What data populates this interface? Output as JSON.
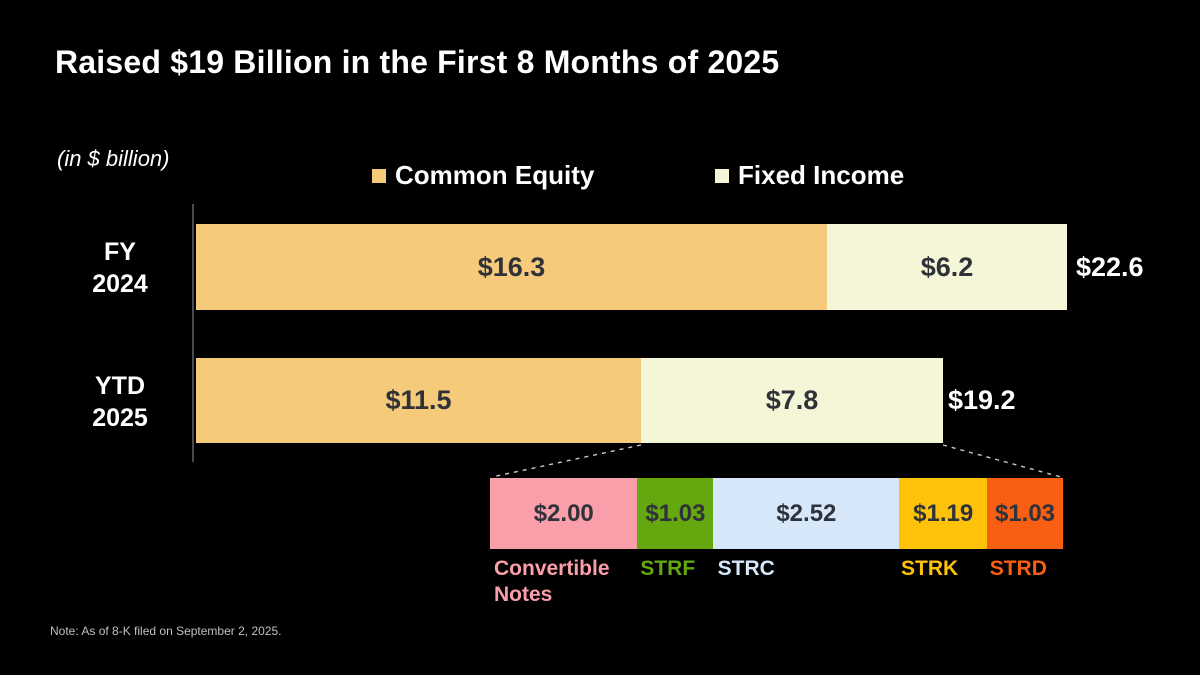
{
  "header": {
    "title": "Raised $19 Billion in the First 8 Months of 2025",
    "unit_label": "(in $ billion)"
  },
  "chart_data": {
    "type": "bar",
    "orientation": "horizontal",
    "unit": "$ billion",
    "title": "Raised $19 Billion in the First 8 Months of 2025",
    "categories": [
      "FY 2024",
      "YTD 2025"
    ],
    "category_lines": [
      [
        "FY",
        "2024"
      ],
      [
        "YTD",
        "2025"
      ]
    ],
    "legend_position": "top",
    "series": [
      {
        "name": "Common Equity",
        "color": "#F5CA7A",
        "values": [
          16.3,
          11.5
        ],
        "labels": [
          "$16.3",
          "$11.5"
        ]
      },
      {
        "name": "Fixed Income",
        "color": "#F5F5D8",
        "values": [
          6.2,
          7.8
        ],
        "labels": [
          "$6.2",
          "$7.8"
        ]
      }
    ],
    "totals": [
      "$22.6",
      "$19.2"
    ],
    "breakdown": {
      "of": "YTD 2025 Fixed Income",
      "segments": [
        {
          "label": "Convertible Notes",
          "value": 2.0,
          "display": "$2.00",
          "color": "#FA9EA9"
        },
        {
          "label": "STRF",
          "value": 1.03,
          "display": "$1.03",
          "color": "#64A70F"
        },
        {
          "label": "STRC",
          "value": 2.52,
          "display": "$2.52",
          "color": "#D6E7FA"
        },
        {
          "label": "STRK",
          "value": 1.19,
          "display": "$1.19",
          "color": "#FEC20A"
        },
        {
          "label": "STRD",
          "value": 1.03,
          "display": "$1.03",
          "color": "#F95F12"
        }
      ]
    }
  },
  "footnote": "Note: As of 8-K filed on September 2, 2025."
}
